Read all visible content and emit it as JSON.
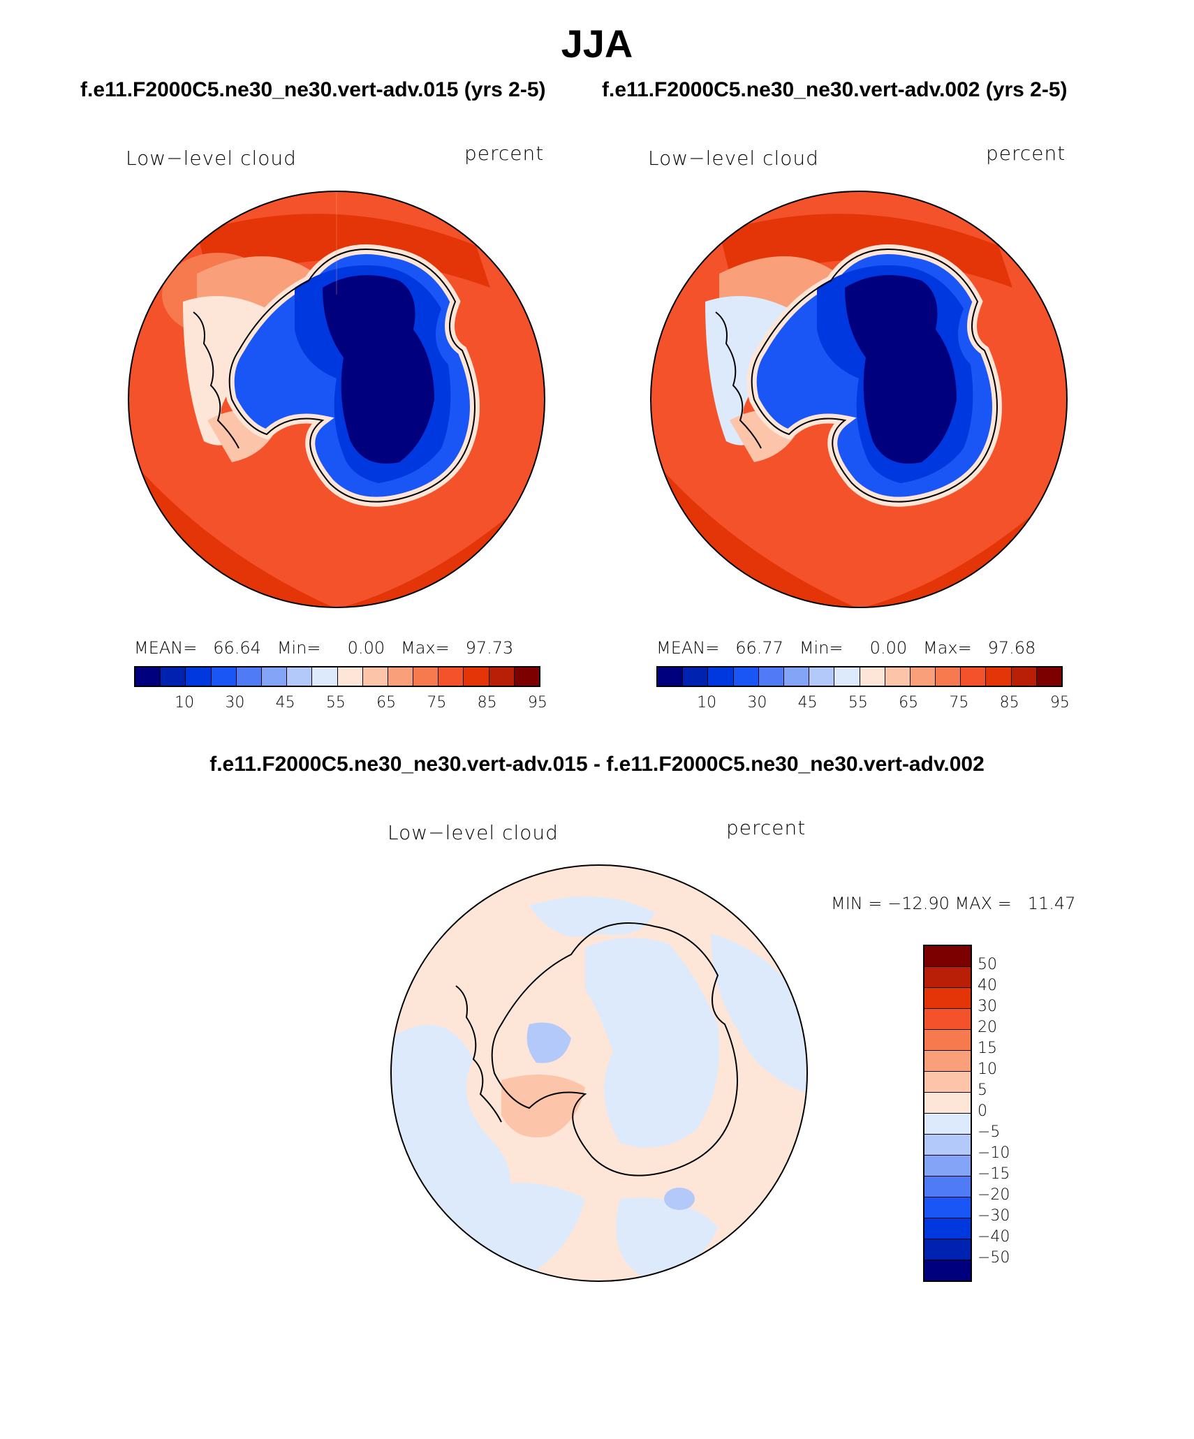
{
  "title": "JJA",
  "panels": [
    {
      "case_title": "f.e11.F2000C5.ne30_ne30.vert-adv.015 (yrs 2-5)",
      "variable": "Low−level cloud",
      "units": "percent",
      "stats": "MEAN=   66.64   Min=     0.00   Max=   97.73"
    },
    {
      "case_title": "f.e11.F2000C5.ne30_ne30.vert-adv.002 (yrs 2-5)",
      "variable": "Low−level cloud",
      "units": "percent",
      "stats": "MEAN=   66.77   Min=     0.00   Max=   97.68"
    }
  ],
  "abs_colorbar": {
    "colors": [
      "#00007f",
      "#0022b0",
      "#0038e0",
      "#1a55f5",
      "#4f7bf7",
      "#84a4f7",
      "#b3c9f9",
      "#ddeafc",
      "#fde5d8",
      "#fcc4a8",
      "#f9a07b",
      "#f77a4f",
      "#f4522a",
      "#e33508",
      "#b91f06",
      "#7d0000"
    ],
    "tick_labels": [
      "10",
      "30",
      "45",
      "55",
      "65",
      "75",
      "85",
      "95"
    ]
  },
  "diff": {
    "title": "f.e11.F2000C5.ne30_ne30.vert-adv.015 - f.e11.F2000C5.ne30_ne30.vert-adv.002",
    "variable": "Low−level cloud",
    "units": "percent",
    "stats": "MIN = −12.90 MAX =   11.47",
    "colors": [
      "#7d0000",
      "#b91f06",
      "#e33508",
      "#f4522a",
      "#f77a4f",
      "#f9a07b",
      "#fcc4a8",
      "#fde5d8",
      "#ddeafc",
      "#b3c9f9",
      "#84a4f7",
      "#4f7bf7",
      "#1a55f5",
      "#0038e0",
      "#0022b0",
      "#00007f"
    ],
    "tick_labels": [
      "50",
      "40",
      "30",
      "20",
      "15",
      "10",
      "5",
      "0",
      "−5",
      "−10",
      "−15",
      "−20",
      "−30",
      "−40",
      "−50"
    ]
  }
}
